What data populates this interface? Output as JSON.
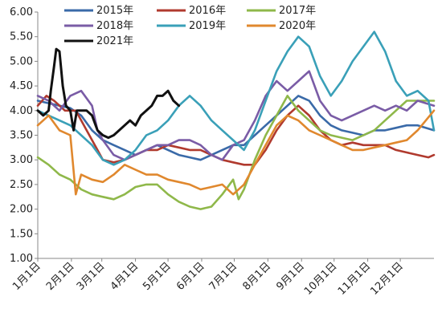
{
  "chart_data": {
    "type": "line",
    "title": "",
    "xlabel": "",
    "ylabel": "",
    "ylim": [
      1.0,
      6.0
    ],
    "grid": false,
    "legend_position": "top",
    "y_ticks": [
      "1.00",
      "1.50",
      "2.00",
      "2.50",
      "3.00",
      "3.50",
      "4.00",
      "4.50",
      "5.00",
      "5.50",
      "6.00"
    ],
    "x_ticks": [
      "1月1日",
      "2月1日",
      "3月1日",
      "4月1日",
      "5月1日",
      "6月1日",
      "7月1日",
      "8月1日",
      "9月1日",
      "10月1日",
      "11月1日",
      "12月1日"
    ],
    "series": [
      {
        "name": "2015年",
        "color": "#3a6aa8",
        "points": [
          [
            0,
            4.2
          ],
          [
            10,
            4.15
          ],
          [
            20,
            4.1
          ],
          [
            30,
            4.05
          ],
          [
            40,
            3.9
          ],
          [
            50,
            3.6
          ],
          [
            60,
            3.4
          ],
          [
            70,
            3.3
          ],
          [
            80,
            3.2
          ],
          [
            90,
            3.1
          ],
          [
            100,
            3.2
          ],
          [
            110,
            3.3
          ],
          [
            120,
            3.2
          ],
          [
            130,
            3.1
          ],
          [
            140,
            3.05
          ],
          [
            150,
            3.0
          ],
          [
            160,
            3.1
          ],
          [
            170,
            3.2
          ],
          [
            180,
            3.3
          ],
          [
            190,
            3.3
          ],
          [
            200,
            3.5
          ],
          [
            210,
            3.7
          ],
          [
            220,
            3.9
          ],
          [
            230,
            4.1
          ],
          [
            240,
            4.3
          ],
          [
            250,
            4.2
          ],
          [
            260,
            3.9
          ],
          [
            270,
            3.7
          ],
          [
            280,
            3.6
          ],
          [
            290,
            3.55
          ],
          [
            300,
            3.5
          ],
          [
            310,
            3.6
          ],
          [
            320,
            3.6
          ],
          [
            330,
            3.65
          ],
          [
            340,
            3.7
          ],
          [
            350,
            3.7
          ],
          [
            365,
            3.6
          ]
        ]
      },
      {
        "name": "2016年",
        "color": "#b03a2e",
        "points": [
          [
            0,
            4.1
          ],
          [
            8,
            4.3
          ],
          [
            15,
            4.2
          ],
          [
            25,
            4.0
          ],
          [
            35,
            4.0
          ],
          [
            45,
            3.6
          ],
          [
            55,
            3.2
          ],
          [
            60,
            3.0
          ],
          [
            70,
            2.95
          ],
          [
            80,
            3.0
          ],
          [
            90,
            3.1
          ],
          [
            100,
            3.2
          ],
          [
            110,
            3.2
          ],
          [
            120,
            3.3
          ],
          [
            130,
            3.25
          ],
          [
            140,
            3.2
          ],
          [
            150,
            3.2
          ],
          [
            160,
            3.1
          ],
          [
            170,
            3.0
          ],
          [
            180,
            2.95
          ],
          [
            190,
            2.9
          ],
          [
            200,
            2.9
          ],
          [
            210,
            3.2
          ],
          [
            220,
            3.6
          ],
          [
            230,
            3.9
          ],
          [
            240,
            4.1
          ],
          [
            250,
            3.9
          ],
          [
            260,
            3.6
          ],
          [
            270,
            3.4
          ],
          [
            280,
            3.3
          ],
          [
            290,
            3.35
          ],
          [
            300,
            3.3
          ],
          [
            310,
            3.3
          ],
          [
            320,
            3.3
          ],
          [
            330,
            3.2
          ],
          [
            340,
            3.15
          ],
          [
            350,
            3.1
          ],
          [
            360,
            3.05
          ],
          [
            365,
            3.1
          ]
        ]
      },
      {
        "name": "2017年",
        "color": "#8fb84a",
        "points": [
          [
            0,
            3.05
          ],
          [
            10,
            2.9
          ],
          [
            20,
            2.7
          ],
          [
            30,
            2.6
          ],
          [
            40,
            2.4
          ],
          [
            50,
            2.3
          ],
          [
            60,
            2.25
          ],
          [
            70,
            2.2
          ],
          [
            80,
            2.3
          ],
          [
            90,
            2.45
          ],
          [
            100,
            2.5
          ],
          [
            110,
            2.5
          ],
          [
            120,
            2.3
          ],
          [
            130,
            2.15
          ],
          [
            140,
            2.05
          ],
          [
            150,
            2.0
          ],
          [
            160,
            2.05
          ],
          [
            170,
            2.3
          ],
          [
            180,
            2.6
          ],
          [
            185,
            2.2
          ],
          [
            190,
            2.4
          ],
          [
            200,
            3.0
          ],
          [
            210,
            3.5
          ],
          [
            220,
            3.9
          ],
          [
            230,
            4.3
          ],
          [
            240,
            4.0
          ],
          [
            250,
            3.8
          ],
          [
            260,
            3.6
          ],
          [
            270,
            3.5
          ],
          [
            280,
            3.45
          ],
          [
            290,
            3.4
          ],
          [
            300,
            3.5
          ],
          [
            310,
            3.6
          ],
          [
            320,
            3.8
          ],
          [
            330,
            4.0
          ],
          [
            340,
            4.2
          ],
          [
            350,
            4.2
          ],
          [
            365,
            4.2
          ]
        ]
      },
      {
        "name": "2018年",
        "color": "#7a5ca6",
        "points": [
          [
            0,
            4.3
          ],
          [
            10,
            4.2
          ],
          [
            20,
            4.0
          ],
          [
            30,
            4.3
          ],
          [
            40,
            4.4
          ],
          [
            50,
            4.1
          ],
          [
            55,
            3.6
          ],
          [
            60,
            3.4
          ],
          [
            70,
            3.1
          ],
          [
            80,
            3.0
          ],
          [
            90,
            3.1
          ],
          [
            100,
            3.2
          ],
          [
            110,
            3.3
          ],
          [
            120,
            3.3
          ],
          [
            130,
            3.4
          ],
          [
            140,
            3.4
          ],
          [
            150,
            3.3
          ],
          [
            160,
            3.1
          ],
          [
            170,
            3.0
          ],
          [
            180,
            3.3
          ],
          [
            190,
            3.4
          ],
          [
            200,
            3.8
          ],
          [
            210,
            4.3
          ],
          [
            220,
            4.6
          ],
          [
            230,
            4.4
          ],
          [
            240,
            4.6
          ],
          [
            250,
            4.8
          ],
          [
            260,
            4.2
          ],
          [
            270,
            3.9
          ],
          [
            280,
            3.8
          ],
          [
            290,
            3.9
          ],
          [
            300,
            4.0
          ],
          [
            310,
            4.1
          ],
          [
            320,
            4.0
          ],
          [
            330,
            4.1
          ],
          [
            340,
            4.0
          ],
          [
            350,
            4.2
          ],
          [
            365,
            4.1
          ]
        ]
      },
      {
        "name": "2019年",
        "color": "#3aa0b8",
        "points": [
          [
            0,
            4.0
          ],
          [
            10,
            3.9
          ],
          [
            20,
            3.8
          ],
          [
            30,
            3.7
          ],
          [
            40,
            3.5
          ],
          [
            50,
            3.3
          ],
          [
            60,
            3.0
          ],
          [
            70,
            2.9
          ],
          [
            80,
            3.0
          ],
          [
            90,
            3.2
          ],
          [
            100,
            3.5
          ],
          [
            110,
            3.6
          ],
          [
            120,
            3.8
          ],
          [
            130,
            4.1
          ],
          [
            140,
            4.3
          ],
          [
            150,
            4.1
          ],
          [
            160,
            3.8
          ],
          [
            170,
            3.6
          ],
          [
            180,
            3.4
          ],
          [
            190,
            3.2
          ],
          [
            200,
            3.6
          ],
          [
            210,
            4.2
          ],
          [
            220,
            4.8
          ],
          [
            230,
            5.2
          ],
          [
            240,
            5.5
          ],
          [
            250,
            5.3
          ],
          [
            260,
            4.7
          ],
          [
            270,
            4.3
          ],
          [
            280,
            4.6
          ],
          [
            290,
            5.0
          ],
          [
            300,
            5.3
          ],
          [
            310,
            5.6
          ],
          [
            320,
            5.2
          ],
          [
            330,
            4.6
          ],
          [
            340,
            4.3
          ],
          [
            350,
            4.4
          ],
          [
            360,
            4.2
          ],
          [
            365,
            3.6
          ]
        ]
      },
      {
        "name": "2020年",
        "color": "#e0882e",
        "points": [
          [
            0,
            3.7
          ],
          [
            10,
            3.9
          ],
          [
            20,
            3.6
          ],
          [
            30,
            3.5
          ],
          [
            35,
            2.3
          ],
          [
            40,
            2.7
          ],
          [
            50,
            2.6
          ],
          [
            60,
            2.55
          ],
          [
            70,
            2.7
          ],
          [
            80,
            2.9
          ],
          [
            90,
            2.8
          ],
          [
            100,
            2.7
          ],
          [
            110,
            2.7
          ],
          [
            120,
            2.6
          ],
          [
            130,
            2.55
          ],
          [
            140,
            2.5
          ],
          [
            150,
            2.4
          ],
          [
            160,
            2.45
          ],
          [
            170,
            2.5
          ],
          [
            180,
            2.3
          ],
          [
            190,
            2.5
          ],
          [
            200,
            2.9
          ],
          [
            210,
            3.3
          ],
          [
            220,
            3.7
          ],
          [
            230,
            3.9
          ],
          [
            240,
            3.8
          ],
          [
            250,
            3.6
          ],
          [
            260,
            3.5
          ],
          [
            270,
            3.4
          ],
          [
            280,
            3.3
          ],
          [
            290,
            3.2
          ],
          [
            300,
            3.2
          ],
          [
            310,
            3.25
          ],
          [
            320,
            3.3
          ],
          [
            330,
            3.35
          ],
          [
            340,
            3.4
          ],
          [
            350,
            3.6
          ],
          [
            365,
            4.0
          ]
        ]
      },
      {
        "name": "2021年",
        "color": "#111111",
        "points": [
          [
            0,
            4.0
          ],
          [
            5,
            3.9
          ],
          [
            10,
            4.0
          ],
          [
            12,
            4.4
          ],
          [
            15,
            4.9
          ],
          [
            17,
            5.25
          ],
          [
            20,
            5.2
          ],
          [
            23,
            4.5
          ],
          [
            26,
            4.1
          ],
          [
            30,
            4.0
          ],
          [
            33,
            3.6
          ],
          [
            36,
            4.0
          ],
          [
            40,
            4.0
          ],
          [
            45,
            4.0
          ],
          [
            50,
            3.9
          ],
          [
            55,
            3.6
          ],
          [
            60,
            3.5
          ],
          [
            65,
            3.45
          ],
          [
            70,
            3.5
          ],
          [
            75,
            3.6
          ],
          [
            80,
            3.7
          ],
          [
            85,
            3.8
          ],
          [
            90,
            3.7
          ],
          [
            95,
            3.9
          ],
          [
            100,
            4.0
          ],
          [
            105,
            4.1
          ],
          [
            110,
            4.3
          ],
          [
            115,
            4.3
          ],
          [
            120,
            4.4
          ],
          [
            125,
            4.2
          ],
          [
            130,
            4.1
          ]
        ]
      }
    ]
  }
}
